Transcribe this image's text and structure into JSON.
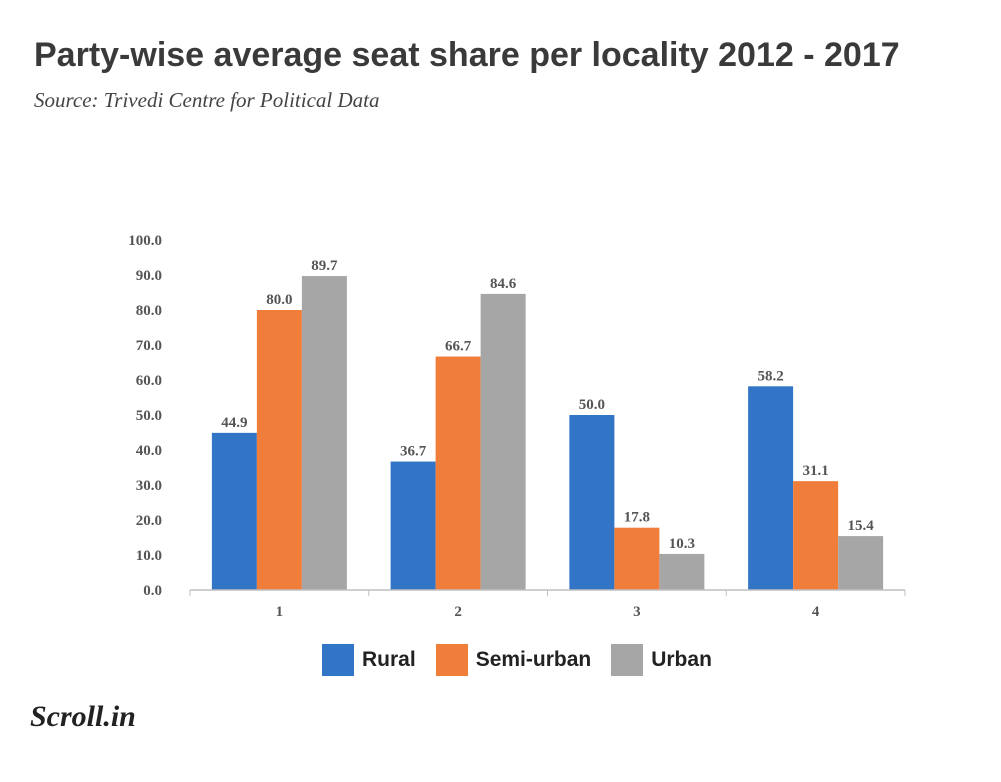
{
  "header": {
    "title": "Party-wise average seat share per locality 2012 - 2017",
    "subtitle": "Source: Trivedi Centre for Political Data"
  },
  "brand": {
    "logo_text": "Scroll.in"
  },
  "legend": {
    "items": [
      {
        "label": "Rural",
        "color": "#3274c5"
      },
      {
        "label": "Semi-urban",
        "color": "#f17d3a"
      },
      {
        "label": "Urban",
        "color": "#a6a6a6"
      }
    ]
  },
  "chart_data": {
    "type": "bar",
    "title": "Party-wise average seat share per locality 2012 - 2017",
    "subtitle": "Source: Trivedi Centre for Political Data",
    "xlabel": "",
    "ylabel": "",
    "categories": [
      "1",
      "2",
      "3",
      "4"
    ],
    "ylim": [
      0,
      100
    ],
    "y_ticks": [
      "0.0",
      "10.0",
      "20.0",
      "30.0",
      "40.0",
      "50.0",
      "60.0",
      "70.0",
      "80.0",
      "90.0",
      "100.0"
    ],
    "grid": false,
    "legend_position": "bottom",
    "series": [
      {
        "name": "Rural",
        "color": "#3274c5",
        "values": [
          44.9,
          36.7,
          50.0,
          58.2
        ],
        "labels": [
          "44.9",
          "36.7",
          "50.0",
          "58.2"
        ]
      },
      {
        "name": "Semi-urban",
        "color": "#f17d3a",
        "values": [
          80.0,
          66.7,
          17.8,
          31.1
        ],
        "labels": [
          "80.0",
          "66.7",
          "17.8",
          "31.1"
        ]
      },
      {
        "name": "Urban",
        "color": "#a6a6a6",
        "values": [
          89.7,
          84.6,
          10.3,
          15.4
        ],
        "labels": [
          "89.7",
          "84.6",
          "10.3",
          "15.4"
        ]
      }
    ]
  }
}
